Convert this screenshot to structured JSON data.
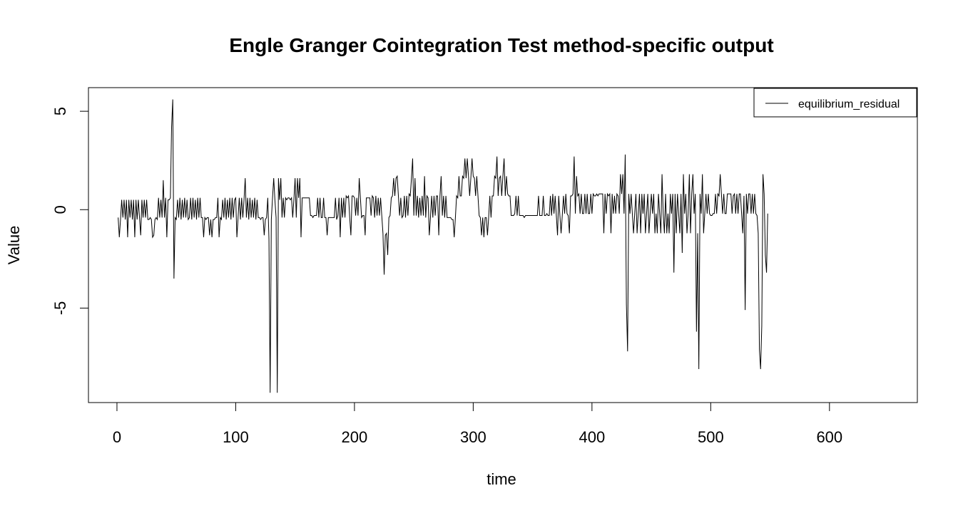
{
  "chart_data": {
    "type": "line",
    "title": "Engle Granger Cointegration Test method-specific output",
    "xlabel": "time",
    "ylabel": "Value",
    "xlim": [
      -24,
      674
    ],
    "ylim": [
      -9.8,
      6.2
    ],
    "x_ticks": [
      0,
      100,
      200,
      300,
      400,
      500,
      600
    ],
    "y_ticks": [
      -5,
      0,
      5
    ],
    "grid": false,
    "legend_position": "top-right",
    "series": [
      {
        "name": "equilibrium_residual",
        "color": "#000000",
        "x_start": 1,
        "x_step": 1,
        "values": [
          -0.4,
          -1.4,
          -0.5,
          0.5,
          -0.4,
          0.5,
          -0.5,
          0.5,
          -1.4,
          0.5,
          -0.4,
          0.5,
          -0.5,
          0.5,
          -1.4,
          0.5,
          -0.5,
          0.5,
          -0.4,
          -1.3,
          0.5,
          -0.4,
          0.5,
          -0.4,
          0.5,
          -0.5,
          -0.5,
          -0.4,
          -0.5,
          -1.4,
          -1.3,
          -0.5,
          -0.4,
          -0.5,
          0.6,
          -0.4,
          0.5,
          -0.4,
          1.5,
          -0.4,
          0.6,
          -1.4,
          0.5,
          0.5,
          0.6,
          4.2,
          5.6,
          -3.5,
          -0.4,
          -0.5,
          0.5,
          -0.4,
          0.6,
          -0.5,
          0.5,
          -0.4,
          0.6,
          -0.4,
          0.5,
          -0.5,
          -0.4,
          0.6,
          -0.5,
          0.6,
          -0.4,
          0.5,
          -0.5,
          0.6,
          -0.4,
          0.6,
          -0.4,
          -0.4,
          -1.4,
          -0.4,
          -0.5,
          -0.4,
          -0.4,
          -1.3,
          -0.5,
          -1.4,
          -0.5,
          -0.5,
          -0.4,
          -0.4,
          0.6,
          -1.4,
          -0.4,
          -0.5,
          0.5,
          -0.4,
          0.6,
          -0.5,
          0.5,
          -0.4,
          0.6,
          -0.5,
          0.6,
          -0.4,
          0.5,
          0.6,
          -1.4,
          -0.4,
          0.6,
          -0.5,
          0.6,
          -0.4,
          0.5,
          1.6,
          -0.4,
          0.6,
          -0.5,
          0.6,
          -0.4,
          0.5,
          -0.4,
          0.6,
          -0.5,
          0.5,
          -0.4,
          -0.4,
          -0.5,
          -0.4,
          -0.4,
          -1.3,
          -0.5,
          -0.4,
          0.6,
          -1.5,
          -9.3,
          -0.5,
          0.6,
          1.6,
          0.5,
          -0.4,
          -9.3,
          1.6,
          0.5,
          1.6,
          -0.4,
          0.6,
          -0.4,
          0.6,
          0.5,
          0.6,
          0.6,
          0.5,
          0.6,
          -0.4,
          0.5,
          1.6,
          -0.4,
          1.6,
          0.6,
          1.6,
          -1.4,
          0.6,
          0.6,
          0.6,
          0.6,
          0.6,
          0.6,
          0.6,
          -0.3,
          -0.3,
          -0.4,
          -0.3,
          -0.3,
          -0.3,
          0.6,
          -0.4,
          0.6,
          -0.4,
          -0.4,
          0.6,
          -0.4,
          -0.4,
          -1.3,
          -0.4,
          -0.4,
          -0.4,
          -0.4,
          -0.4,
          -0.4,
          0.6,
          -0.5,
          -0.3,
          0.6,
          -1.4,
          0.6,
          -0.4,
          0.6,
          -0.4,
          0.7,
          0.6,
          0.7,
          -0.4,
          -1.3,
          0.7,
          0.7,
          0.6,
          -0.3,
          0.6,
          -0.3,
          1.6,
          0.6,
          -0.4,
          -0.3,
          -0.3,
          -1.3,
          0.6,
          0.6,
          0.6,
          0.6,
          -0.3,
          0.7,
          0.6,
          -0.4,
          0.7,
          -0.3,
          0.6,
          -0.3,
          0.6,
          -0.3,
          -1.2,
          -3.3,
          -1.3,
          -1.2,
          -2.3,
          -0.4,
          -0.3,
          0.6,
          0.7,
          1.6,
          0.7,
          1.6,
          1.7,
          0.7,
          -0.3,
          0.6,
          -0.4,
          -0.3,
          0.7,
          -0.4,
          0.7,
          -0.3,
          0.8,
          0.7,
          1.6,
          2.6,
          -0.3,
          1.6,
          -0.3,
          0.7,
          -0.4,
          0.6,
          -0.3,
          0.7,
          -0.3,
          1.7,
          -0.4,
          0.7,
          0.6,
          -1.3,
          -0.4,
          0.7,
          -0.4,
          0.7,
          -0.3,
          0.7,
          0.7,
          -1.3,
          0.7,
          1.7,
          -0.3,
          0.7,
          -0.4,
          0.7,
          -0.4,
          -0.4,
          -0.4,
          -0.4,
          -0.5,
          -0.5,
          -1.4,
          -0.4,
          0.7,
          0.6,
          1.7,
          0.7,
          0.7,
          1.7,
          1.6,
          2.6,
          1.6,
          2.6,
          1.7,
          0.7,
          1.6,
          2.6,
          1.7,
          1.6,
          0.7,
          1.7,
          0.7,
          -0.3,
          -0.4,
          -1.3,
          -0.4,
          -1.4,
          -0.4,
          -0.4,
          -1.3,
          -0.4,
          0.7,
          -0.4,
          0.7,
          0.7,
          1.7,
          1.6,
          2.7,
          0.7,
          1.6,
          1.7,
          0.7,
          1.7,
          2.6,
          0.7,
          1.7,
          0.8,
          0.7,
          0.7,
          -0.3,
          -0.3,
          -0.3,
          -0.2,
          0.7,
          -0.3,
          0.7,
          -0.3,
          -0.3,
          -0.3,
          -0.3,
          -0.4,
          -0.3,
          -0.3,
          -0.3,
          -0.3,
          -0.3,
          -0.3,
          -0.3,
          -0.3,
          -0.3,
          -0.3,
          -0.3,
          0.7,
          -0.3,
          -0.3,
          -0.3,
          0.7,
          -0.3,
          -0.3,
          -0.2,
          -0.3,
          -0.3,
          0.7,
          -0.3,
          0.8,
          -0.2,
          0.7,
          -0.3,
          -1.3,
          0.7,
          -0.3,
          -1.2,
          -0.3,
          0.7,
          -0.2,
          0.8,
          -0.2,
          -0.3,
          -1.2,
          0.7,
          0.7,
          0.8,
          2.7,
          -0.2,
          1.7,
          0.7,
          0.8,
          -0.2,
          0.8,
          -0.2,
          -0.2,
          0.8,
          -0.2,
          0.8,
          -0.2,
          -0.2,
          0.8,
          -0.2,
          0.8,
          0.7,
          0.7,
          0.8,
          0.7,
          0.8,
          0.8,
          0.8,
          0.8,
          -1.2,
          0.8,
          -0.2,
          0.8,
          0.7,
          0.8,
          -1.2,
          0.8,
          -0.2,
          0.7,
          -0.2,
          0.8,
          0.7,
          -0.2,
          1.8,
          0.8,
          1.8,
          -0.2,
          2.8,
          -4.8,
          -7.2,
          0.8,
          -0.2,
          0.8,
          -0.2,
          -1.2,
          -0.2,
          0.8,
          -1.2,
          -0.2,
          0.8,
          -1.2,
          0.8,
          -0.2,
          0.8,
          -1.2,
          -0.2,
          0.8,
          -1.2,
          -0.2,
          0.8,
          -0.2,
          0.8,
          -1.2,
          -0.2,
          -1.2,
          0.8,
          -0.2,
          -1.2,
          1.8,
          -0.2,
          -1.2,
          0.8,
          -1.2,
          -0.2,
          -1.2,
          0.8,
          -0.2,
          0.8,
          -3.2,
          0.8,
          -1.2,
          0.8,
          -0.2,
          -1.2,
          0.8,
          -2.2,
          1.8,
          -0.2,
          0.8,
          -1.2,
          -0.2,
          1.8,
          -1.2,
          0.8,
          1.8,
          -0.2,
          0.8,
          -6.2,
          -1.2,
          -8.1,
          0.8,
          -0.2,
          1.8,
          -1.2,
          -0.2,
          0.8,
          -0.2,
          0.8,
          -0.2,
          -0.3,
          -0.3,
          -0.2,
          -0.2,
          0.8,
          -0.2,
          0.8,
          0.7,
          1.8,
          0.8,
          -0.2,
          0.8,
          -0.2,
          -0.2,
          0.8,
          0.8,
          0.8,
          0.8,
          -0.2,
          0.7,
          0.8,
          -0.2,
          0.8,
          -0.2,
          0.8,
          0.8,
          -0.2,
          -1.2,
          0.7,
          -5.1,
          0.8,
          -0.2,
          0.8,
          0.8,
          -0.2,
          0.8,
          -0.2,
          0.8,
          -0.2,
          -0.3,
          -1.2,
          -7.1,
          -8.1,
          -5.9,
          1.8,
          0.8,
          -2.3,
          -3.2,
          -0.2
        ]
      }
    ]
  }
}
